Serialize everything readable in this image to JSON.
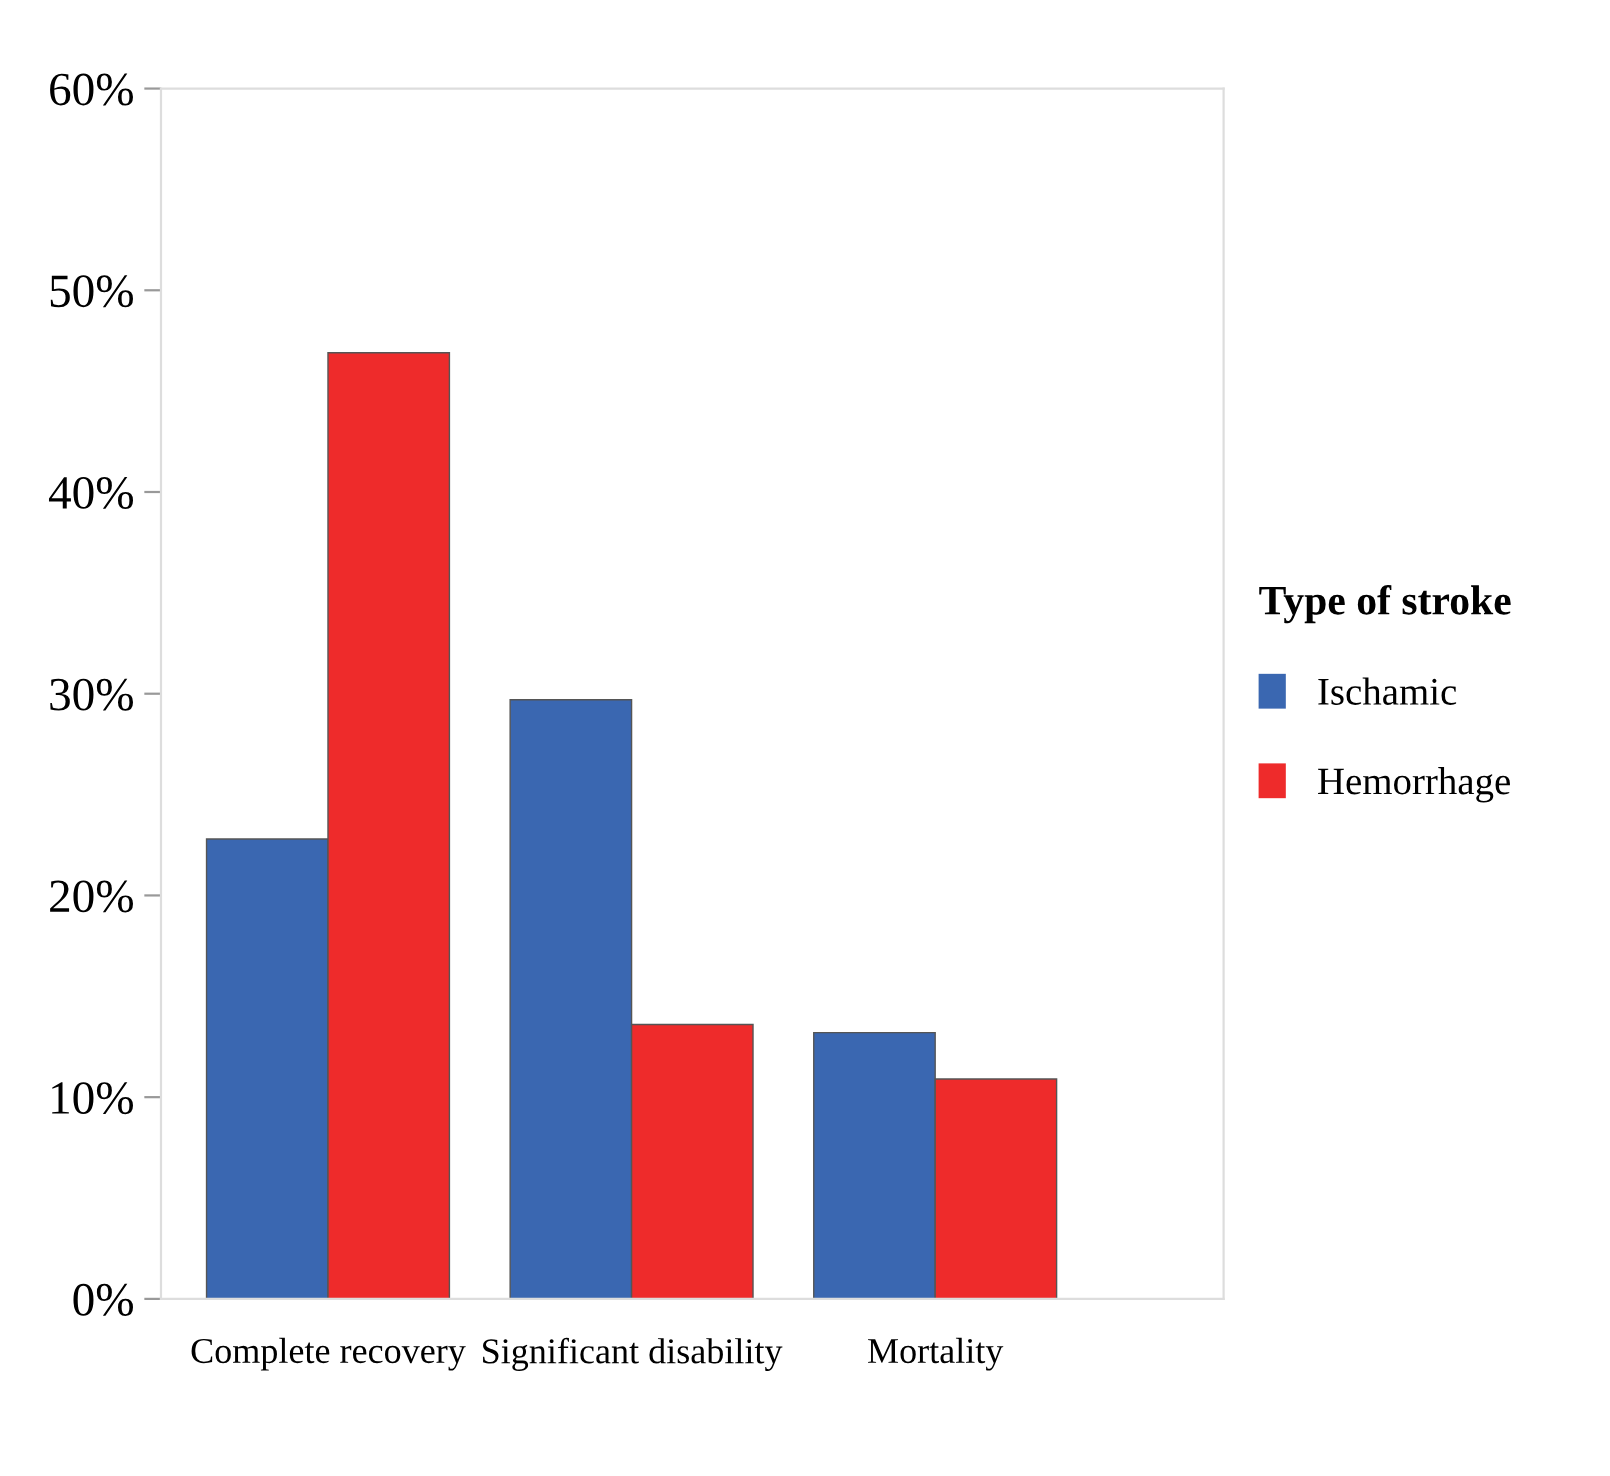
{
  "chart_data": {
    "type": "bar",
    "categories": [
      "Complete recovery",
      "Significant disability",
      "Mortality"
    ],
    "series": [
      {
        "name": "Ischamic",
        "color": "#3a67b1",
        "values": [
          22.8,
          29.7,
          13.2
        ]
      },
      {
        "name": "Hemorrhage",
        "color": "#ee2b2b",
        "values": [
          46.9,
          13.6,
          10.9
        ]
      }
    ],
    "ylim": [
      0,
      60
    ],
    "yticks": [
      {
        "value": 0,
        "label": "0%"
      },
      {
        "value": 10,
        "label": "10%"
      },
      {
        "value": 20,
        "label": "20%"
      },
      {
        "value": 30,
        "label": "30%"
      },
      {
        "value": 40,
        "label": "40%"
      },
      {
        "value": 50,
        "label": "50%"
      },
      {
        "value": 60,
        "label": "60%"
      }
    ],
    "legend_title": "Type of stroke",
    "legend": "right",
    "grid": false
  }
}
